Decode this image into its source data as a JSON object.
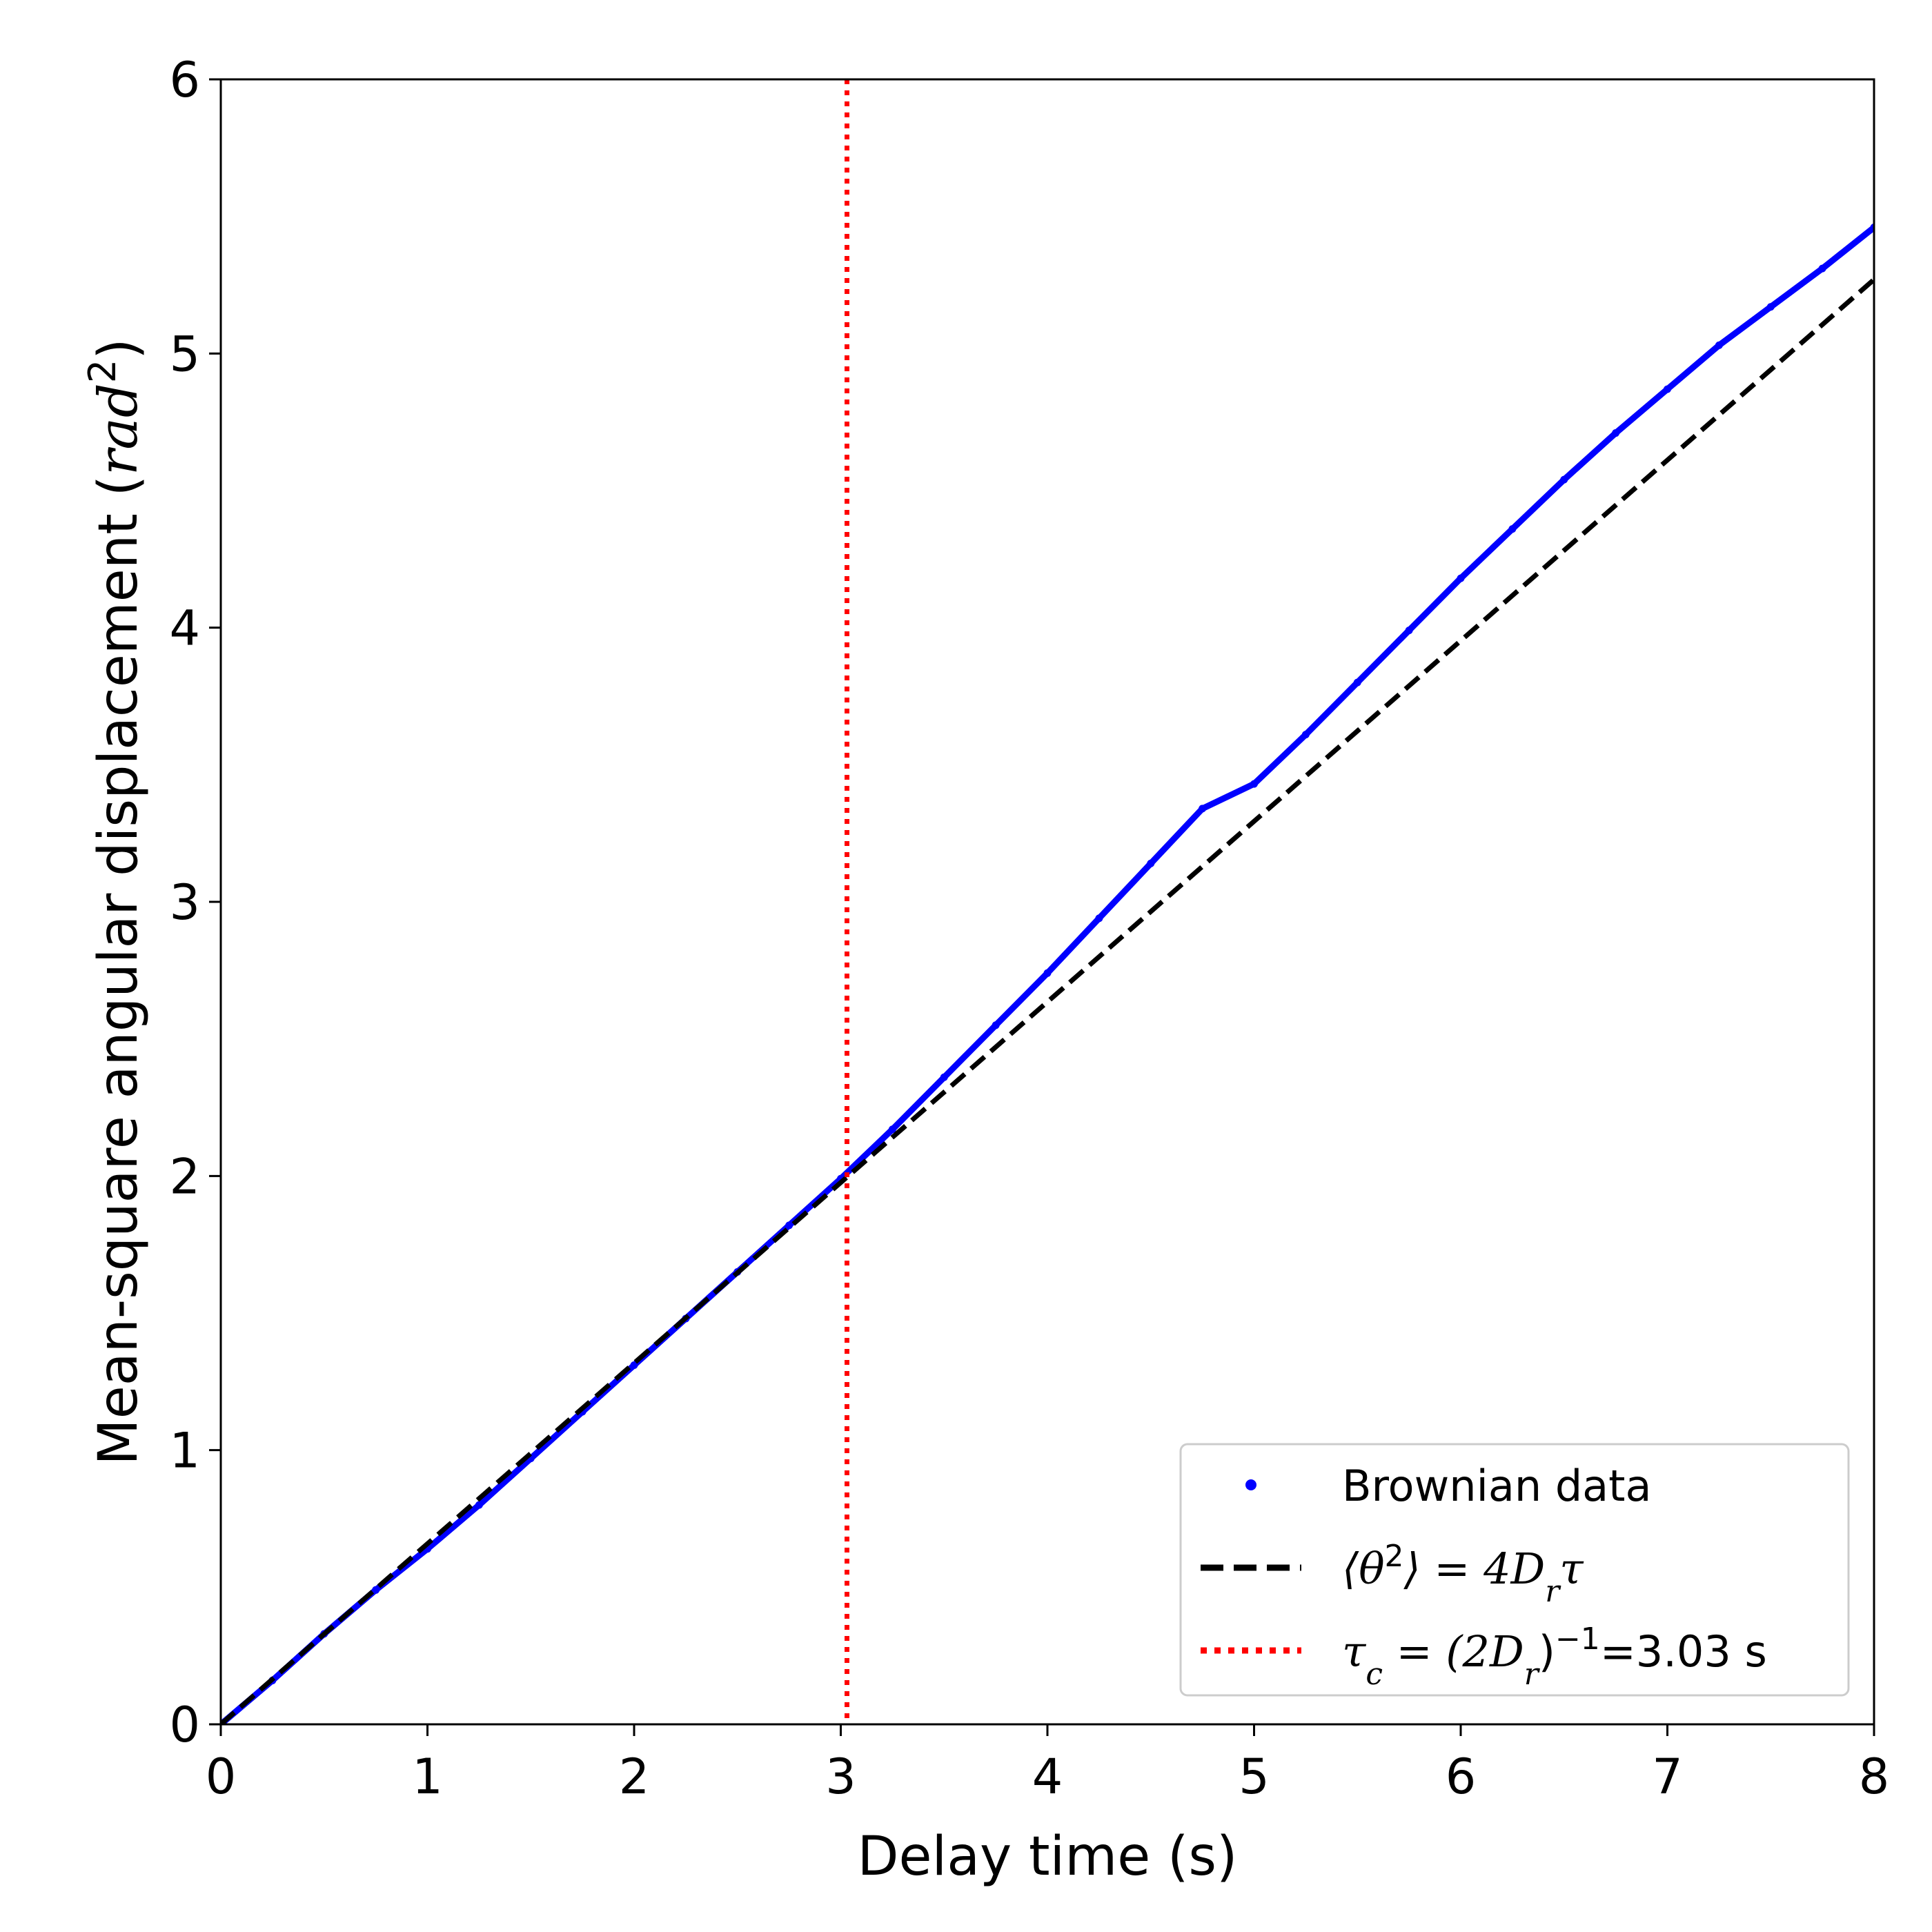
{
  "chart_data": {
    "type": "line",
    "title": "",
    "xlabel": "Delay time (s)",
    "ylabel_prefix": "Mean-square angular displacement (",
    "ylabel_unit": "rad",
    "ylabel_sup": "2",
    "ylabel_suffix": ")",
    "xlim": [
      0,
      8
    ],
    "ylim": [
      0,
      6
    ],
    "x_ticks": [
      "0",
      "1",
      "2",
      "3",
      "4",
      "5",
      "6",
      "7",
      "8"
    ],
    "y_ticks": [
      "0",
      "1",
      "2",
      "3",
      "4",
      "5",
      "6"
    ],
    "grid": false,
    "legend_position": "lower-right",
    "series": [
      {
        "name": "Brownian data",
        "style": "points",
        "color": "#0000ff",
        "x": [
          0,
          0.25,
          0.5,
          0.75,
          1.0,
          1.25,
          1.5,
          1.75,
          2.0,
          2.25,
          2.5,
          2.75,
          3.0,
          3.25,
          3.5,
          3.75,
          4.0,
          4.25,
          4.5,
          4.75,
          5.0,
          5.25,
          5.5,
          5.75,
          6.0,
          6.25,
          6.5,
          6.75,
          7.0,
          7.25,
          7.5,
          7.75,
          8.0
        ],
        "y": [
          0,
          0.16,
          0.33,
          0.49,
          0.64,
          0.8,
          0.97,
          1.14,
          1.31,
          1.48,
          1.65,
          1.82,
          1.99,
          2.17,
          2.36,
          2.55,
          2.74,
          2.94,
          3.14,
          3.34,
          3.43,
          3.61,
          3.8,
          3.99,
          4.18,
          4.36,
          4.54,
          4.71,
          4.87,
          5.03,
          5.17,
          5.31,
          5.46
        ]
      },
      {
        "name_prefix": "⟨θ",
        "name_sup": "2",
        "name_suffix": "⟩ = 4D",
        "name_sub": "r",
        "name_tail": "τ",
        "style": "dashed",
        "color": "#000000",
        "x": [
          0,
          8
        ],
        "y": [
          0,
          5.27
        ]
      },
      {
        "name_tau": "τ",
        "name_tau_sub": "c",
        "name_mid": " = (2D",
        "name_mid_sub": "r",
        "name_close": ")",
        "name_exp": "−1",
        "name_value": "=3.03 s",
        "style": "dotted-vertical",
        "color": "#ff0000",
        "x": 3.03
      }
    ]
  }
}
